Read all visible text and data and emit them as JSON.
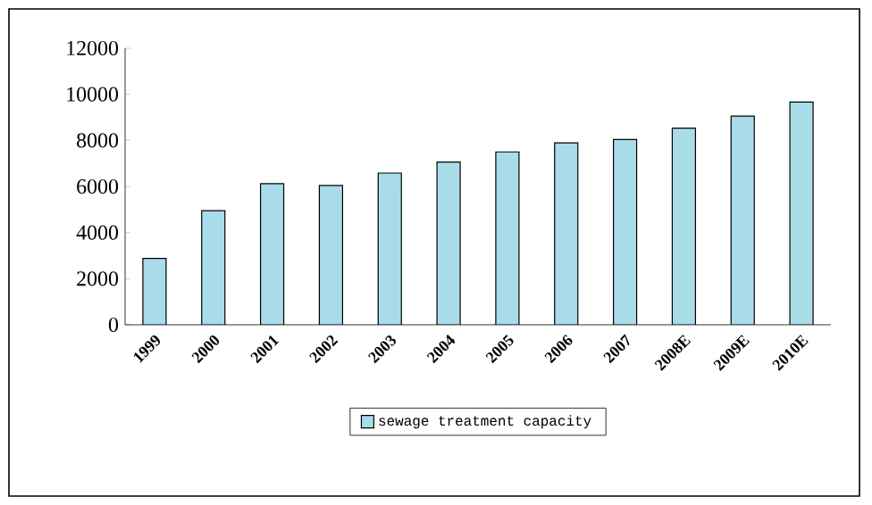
{
  "chart_data": {
    "type": "bar",
    "categories": [
      "1999",
      "2000",
      "2001",
      "2002",
      "2003",
      "2004",
      "2005",
      "2006",
      "2007",
      "2008E",
      "2009E",
      "2010E"
    ],
    "series": [
      {
        "name": "sewage treatment capacity",
        "color": "#a8dce8",
        "values": [
          2880,
          4950,
          6120,
          6040,
          6580,
          7060,
          7500,
          7890,
          8040,
          8530,
          9050,
          9660
        ]
      }
    ],
    "ylim": [
      0,
      12000
    ],
    "yticks": [
      0,
      2000,
      4000,
      6000,
      8000,
      10000,
      12000
    ],
    "legend": "bottom"
  }
}
